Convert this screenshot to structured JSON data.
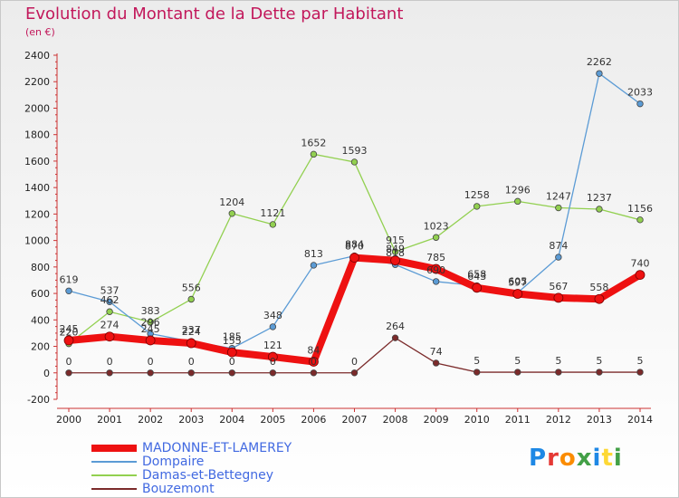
{
  "title": "Evolution du Montant de la Dette par Habitant",
  "subtitle": "(en €)",
  "logo": {
    "letters": [
      "P",
      "r",
      "o",
      "x",
      "i",
      "t",
      "i"
    ],
    "colors": [
      "#1e88e5",
      "#e53935",
      "#fb8c00",
      "#43a047",
      "#1e88e5",
      "#fdd835",
      "#43a047"
    ]
  },
  "chart_data": {
    "type": "line",
    "title": "Evolution du Montant de la Dette par Habitant",
    "ylabel": "(en €)",
    "xlabel": "",
    "x": [
      "2000",
      "2001",
      "2002",
      "2003",
      "2004",
      "2005",
      "2006",
      "2007",
      "2008",
      "2009",
      "2010",
      "2011",
      "2012",
      "2013",
      "2014"
    ],
    "ylim": [
      -200,
      2400
    ],
    "yticks": [
      "-200",
      "0",
      "200",
      "400",
      "600",
      "800",
      "1000",
      "1200",
      "1400",
      "1600",
      "1800",
      "2000",
      "2200",
      "2400"
    ],
    "grid": false,
    "legend_position": "bottom-left",
    "series": [
      {
        "name": "MADONNE-ET-LAMEREY",
        "color": "#ee1111",
        "values": [
          245,
          274,
          245,
          224,
          155,
          121,
          84,
          870,
          849,
          785,
          643,
          597,
          567,
          558,
          740
        ],
        "labels": [
          "245",
          "274",
          "245",
          "224",
          "155",
          "121",
          "84",
          "870",
          "849",
          "785",
          "643",
          "597",
          "567",
          "558",
          "740"
        ]
      },
      {
        "name": "Dompaire",
        "color": "#5b9bd5",
        "values": [
          619,
          537,
          296,
          237,
          185,
          348,
          813,
          884,
          818,
          690,
          658,
          605,
          874,
          2262,
          2033
        ],
        "labels": [
          "619",
          "537",
          "296",
          "237",
          "185",
          "348",
          "813",
          "884",
          "818",
          "690",
          "658",
          "605",
          "874",
          "2262",
          "2033"
        ]
      },
      {
        "name": "Damas-et-Bettegney",
        "color": "#92d050",
        "values": [
          220,
          462,
          383,
          556,
          1204,
          1121,
          1652,
          1593,
          915,
          1023,
          1258,
          1296,
          1247,
          1237,
          1156
        ],
        "labels": [
          "220",
          "462",
          "383",
          "556",
          "1204",
          "1121",
          "1652",
          "1593",
          "915",
          "1023",
          "1258",
          "1296",
          "1247",
          "1237",
          "1156"
        ]
      },
      {
        "name": "Bouzemont",
        "color": "#7b2a2a",
        "values": [
          0,
          0,
          0,
          0,
          0,
          0,
          0,
          0,
          264,
          74,
          5,
          5,
          5,
          5,
          5
        ],
        "labels": [
          "0",
          "0",
          "0",
          "0",
          "0",
          "0",
          "0",
          "0",
          "264",
          "74",
          "5",
          "5",
          "5",
          "5",
          "5"
        ]
      }
    ]
  }
}
